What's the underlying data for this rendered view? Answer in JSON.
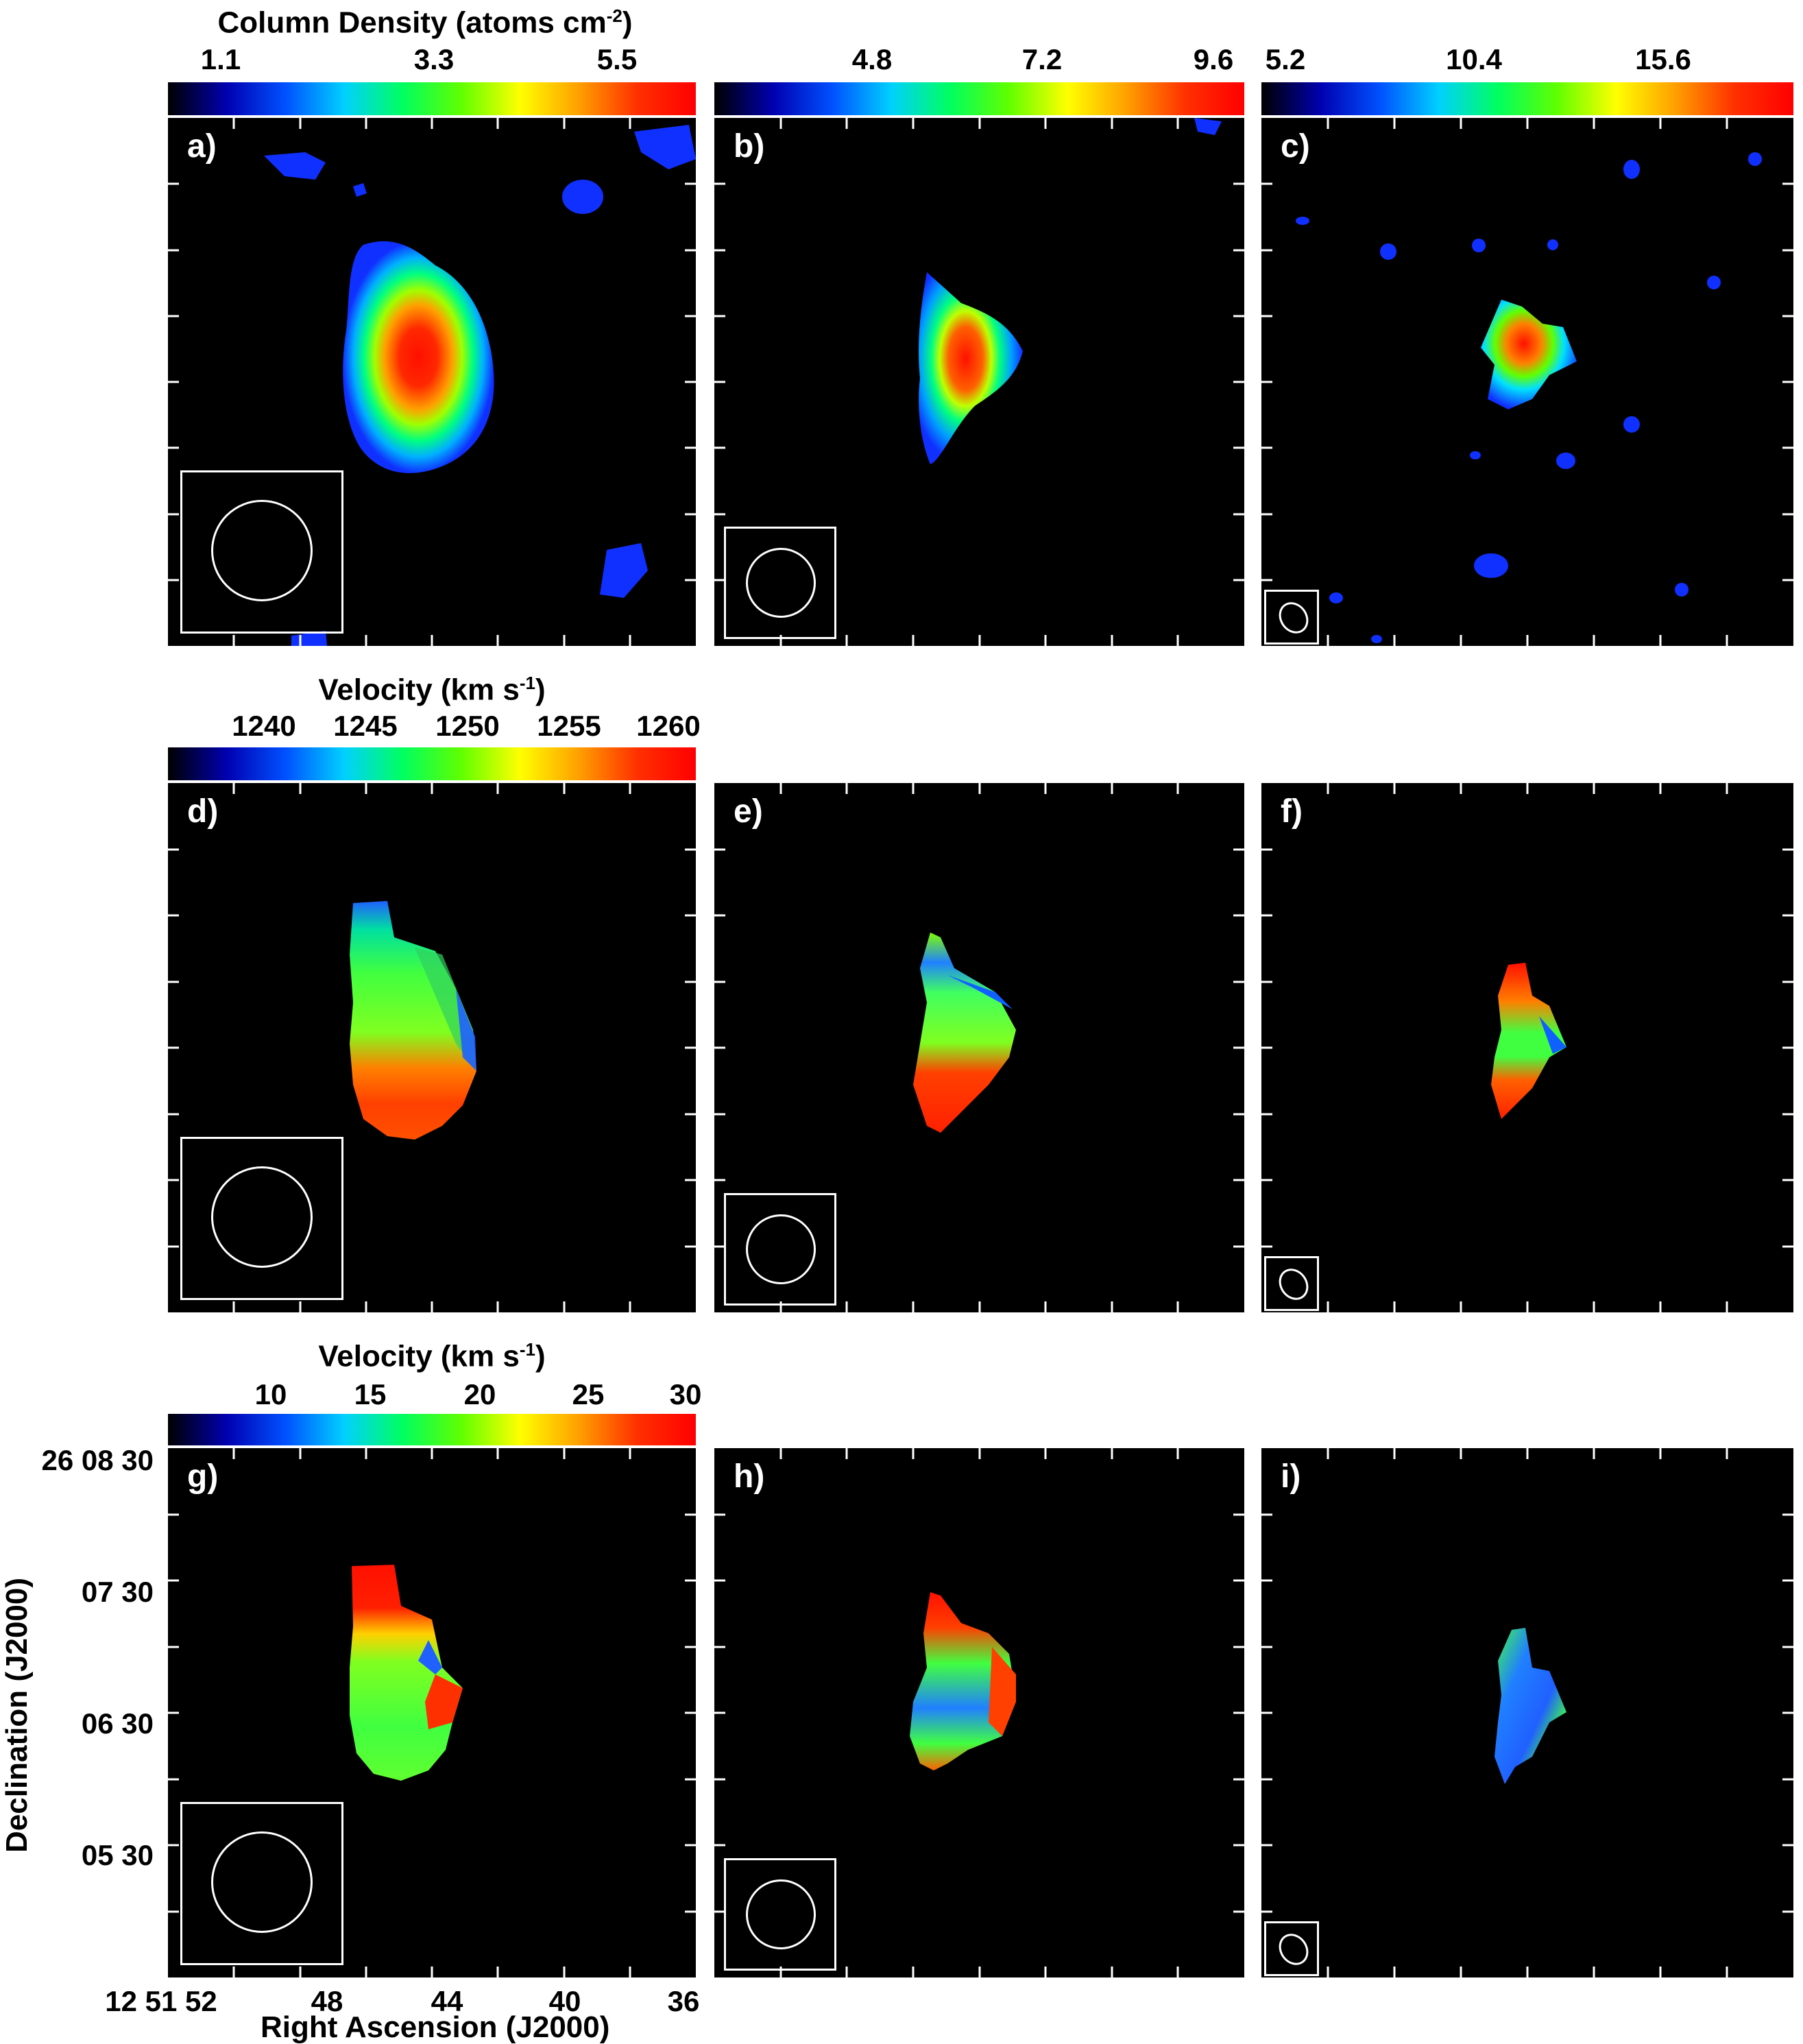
{
  "figure": {
    "rows": [
      {
        "colorbar_title_prefix": "Column Density (atoms cm",
        "colorbar_title_sup": "-2",
        "colorbar_title_suffix": ")",
        "colorbars": [
          {
            "ticks": [
              "1.1",
              "3.3",
              "5.5"
            ]
          },
          {
            "ticks": [
              "4.8",
              "7.2",
              "9.6"
            ]
          },
          {
            "ticks": [
              "5.2",
              "10.4",
              "15.6"
            ]
          }
        ]
      },
      {
        "colorbar_title_prefix": "Velocity (km s",
        "colorbar_title_sup": "-1",
        "colorbar_title_suffix": ")",
        "colorbars": [
          {
            "ticks": [
              "1240",
              "1245",
              "1250",
              "1255",
              "1260"
            ]
          }
        ]
      },
      {
        "colorbar_title_prefix": "Velocity (km s",
        "colorbar_title_sup": "-1",
        "colorbar_title_suffix": ")",
        "colorbars": [
          {
            "ticks": [
              "10",
              "15",
              "20",
              "25",
              "30"
            ]
          }
        ]
      }
    ],
    "panels": [
      {
        "label": "a)",
        "kind": "moment0",
        "peak": "red"
      },
      {
        "label": "b)",
        "kind": "moment0",
        "peak": "red"
      },
      {
        "label": "c)",
        "kind": "moment0",
        "peak": "red"
      },
      {
        "label": "d)",
        "kind": "velocity"
      },
      {
        "label": "e)",
        "kind": "velocity"
      },
      {
        "label": "f)",
        "kind": "velocity"
      },
      {
        "label": "g)",
        "kind": "dispersion"
      },
      {
        "label": "h)",
        "kind": "dispersion"
      },
      {
        "label": "i)",
        "kind": "dispersion"
      }
    ],
    "axes": {
      "ylabel": "Declination (J2000)",
      "xlabel": "Right Ascension (J2000)",
      "yticks": [
        "26 08 30",
        "07 30",
        "06 30",
        "05 30"
      ],
      "xticks": [
        "12 51 52",
        "48",
        "44",
        "40",
        "36"
      ]
    },
    "colors": {
      "colormap": [
        "#000000",
        "#0000b0",
        "#0050ff",
        "#00d0ff",
        "#00ff60",
        "#60ff00",
        "#ffff00",
        "#ffa000",
        "#ff3000",
        "#ff0000"
      ]
    }
  }
}
